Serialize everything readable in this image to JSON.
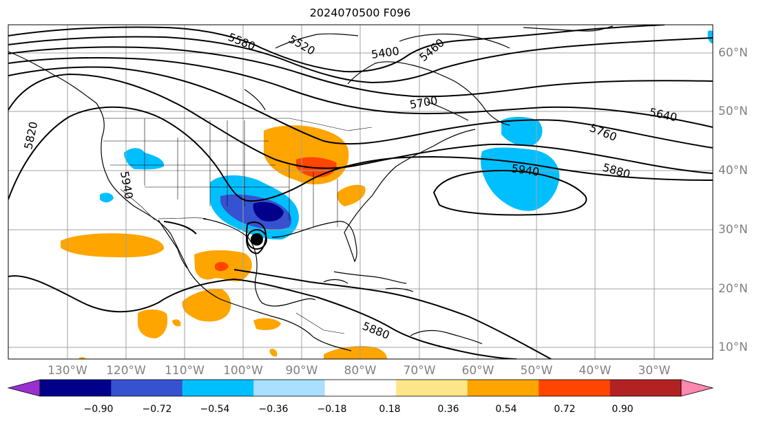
{
  "title": "2024070500 F096",
  "latitude_labels": [
    "60°N",
    "50°N",
    "40°N",
    "30°N",
    "20°N",
    "10°N"
  ],
  "longitude_labels": [
    "130°W",
    "120°W",
    "110°W",
    "100°W",
    "90°W",
    "80°W",
    "70°W",
    "60°W",
    "50°W",
    "40°W",
    "30°W"
  ],
  "contour_labels": [
    "5580",
    "5520",
    "5400",
    "5460",
    "5700",
    "5640",
    "5760",
    "5880",
    "5940",
    "5820",
    "5940",
    "5880"
  ],
  "colorbar": {
    "ticks": [
      "−0.90",
      "−0.72",
      "−0.54",
      "−0.36",
      "−0.18",
      "0.18",
      "0.36",
      "0.54",
      "0.72",
      "0.90"
    ],
    "colors": [
      "#9b30d0",
      "#00008b",
      "#3652d0",
      "#00bfff",
      "#aadfff",
      "#ffffff",
      "#fde68a",
      "#ffa500",
      "#ff4500",
      "#b22222",
      "#ff88b0"
    ]
  },
  "storm_marker": "tropical-cyclone-icon"
}
